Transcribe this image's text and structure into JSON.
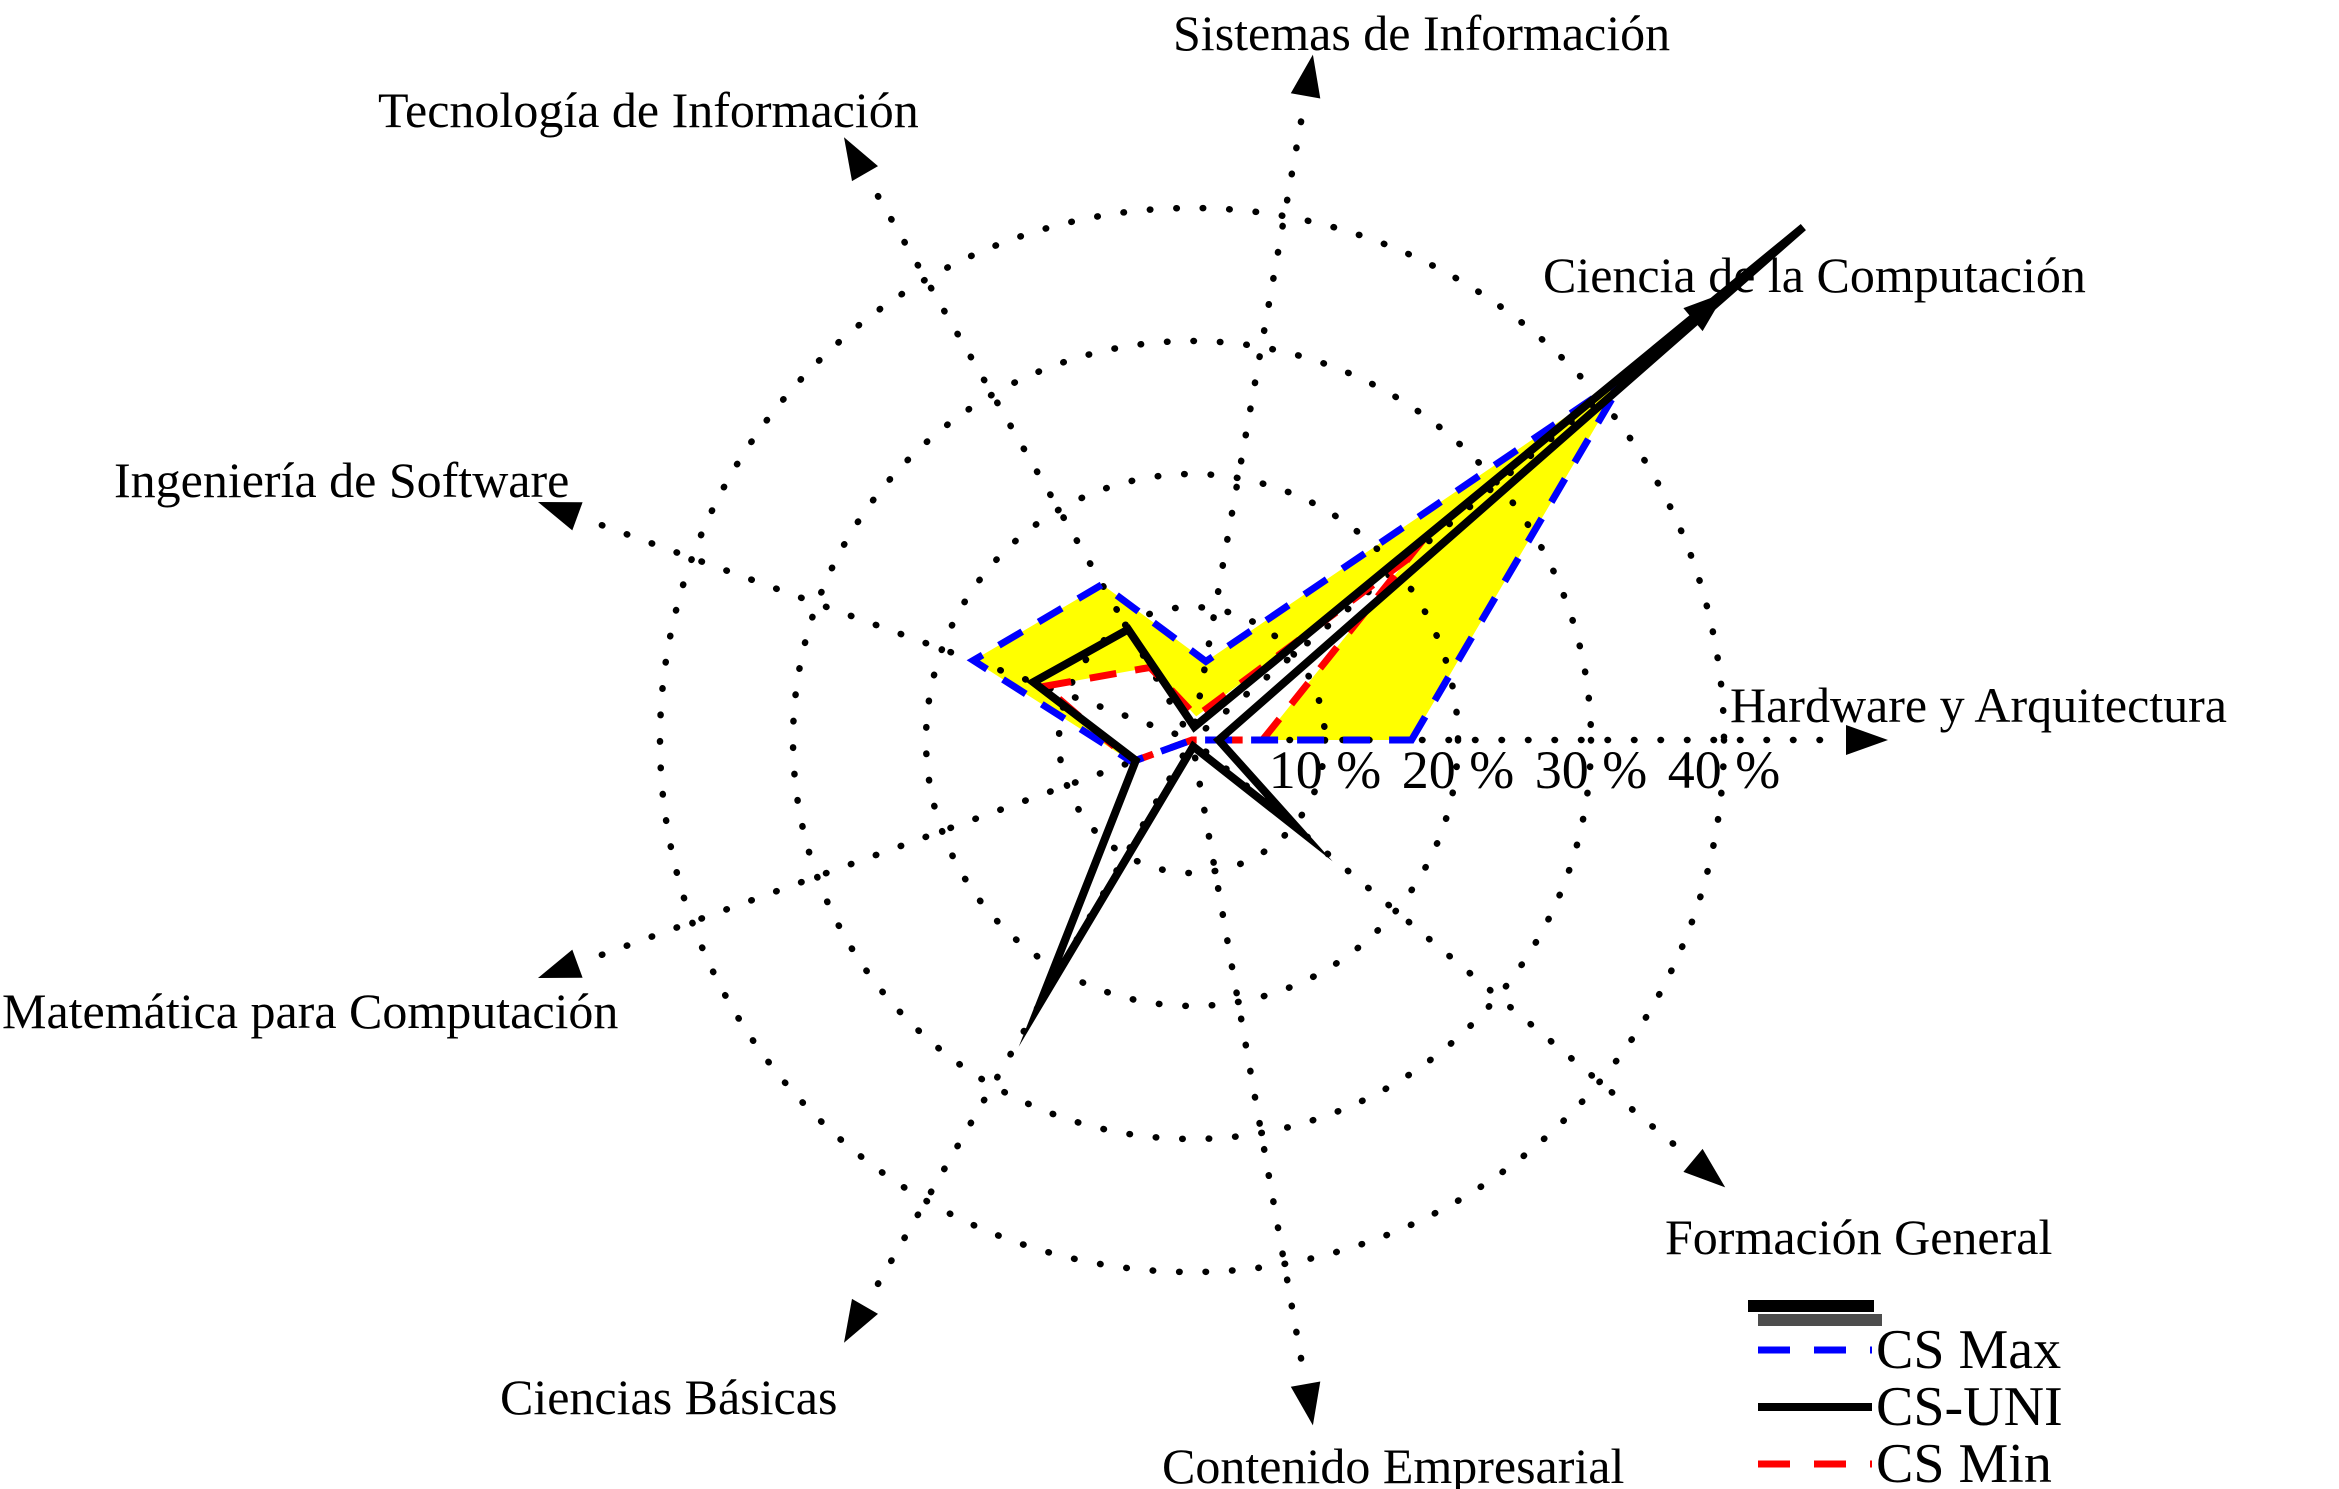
{
  "chart_data": {
    "type": "radar",
    "title": "",
    "unit": "%",
    "categories": [
      "Hardware y Arquitectura",
      "Ciencia de la Computación",
      "Sistemas de Información",
      "Tecnología de Información",
      "Ingeniería de Software",
      "Matemática para Computación",
      "Ciencias Básicas",
      "Contenido Empresarial",
      "Formación General"
    ],
    "angles_deg": [
      0,
      40,
      80,
      120,
      160,
      200,
      240,
      280,
      320
    ],
    "radial_ticks": [
      {
        "value": 10,
        "label": "10 %"
      },
      {
        "value": 20,
        "label": "20 %"
      },
      {
        "value": 30,
        "label": "30 %"
      },
      {
        "value": 40,
        "label": "40 %"
      }
    ],
    "rmax": 40,
    "grid_style": "dotted",
    "axis_style": "dotted-arrow",
    "series": [
      {
        "name": "CS Max",
        "color": "#0000ff",
        "line_style": "dashed",
        "values": [
          16.5,
          42.5,
          6.0,
          13.5,
          17.5,
          4.8,
          0,
          0,
          0
        ]
      },
      {
        "name": "CS-UNI",
        "color": "#000000",
        "line_style": "solid",
        "values": [
          2.0,
          60.0,
          1.0,
          9.6,
          12.7,
          4.5,
          22.8,
          0.5,
          10.5
        ]
      },
      {
        "name": "CS Min",
        "color": "#ff0000",
        "line_style": "dashed",
        "values": [
          5.3,
          21.2,
          1.8,
          6.3,
          11.8,
          4.8,
          0,
          0,
          0
        ]
      }
    ],
    "band": {
      "between": [
        "CS Max",
        "CS Min"
      ],
      "fill_color": "#ffff00"
    },
    "legend_position": "bottom-right"
  },
  "legend": {
    "bars": [
      {
        "color": "#000000"
      },
      {
        "color": "#4d4d4d"
      }
    ],
    "items": [
      {
        "label": "CS Max"
      },
      {
        "label": "CS-UNI"
      },
      {
        "label": "CS Min"
      }
    ]
  }
}
